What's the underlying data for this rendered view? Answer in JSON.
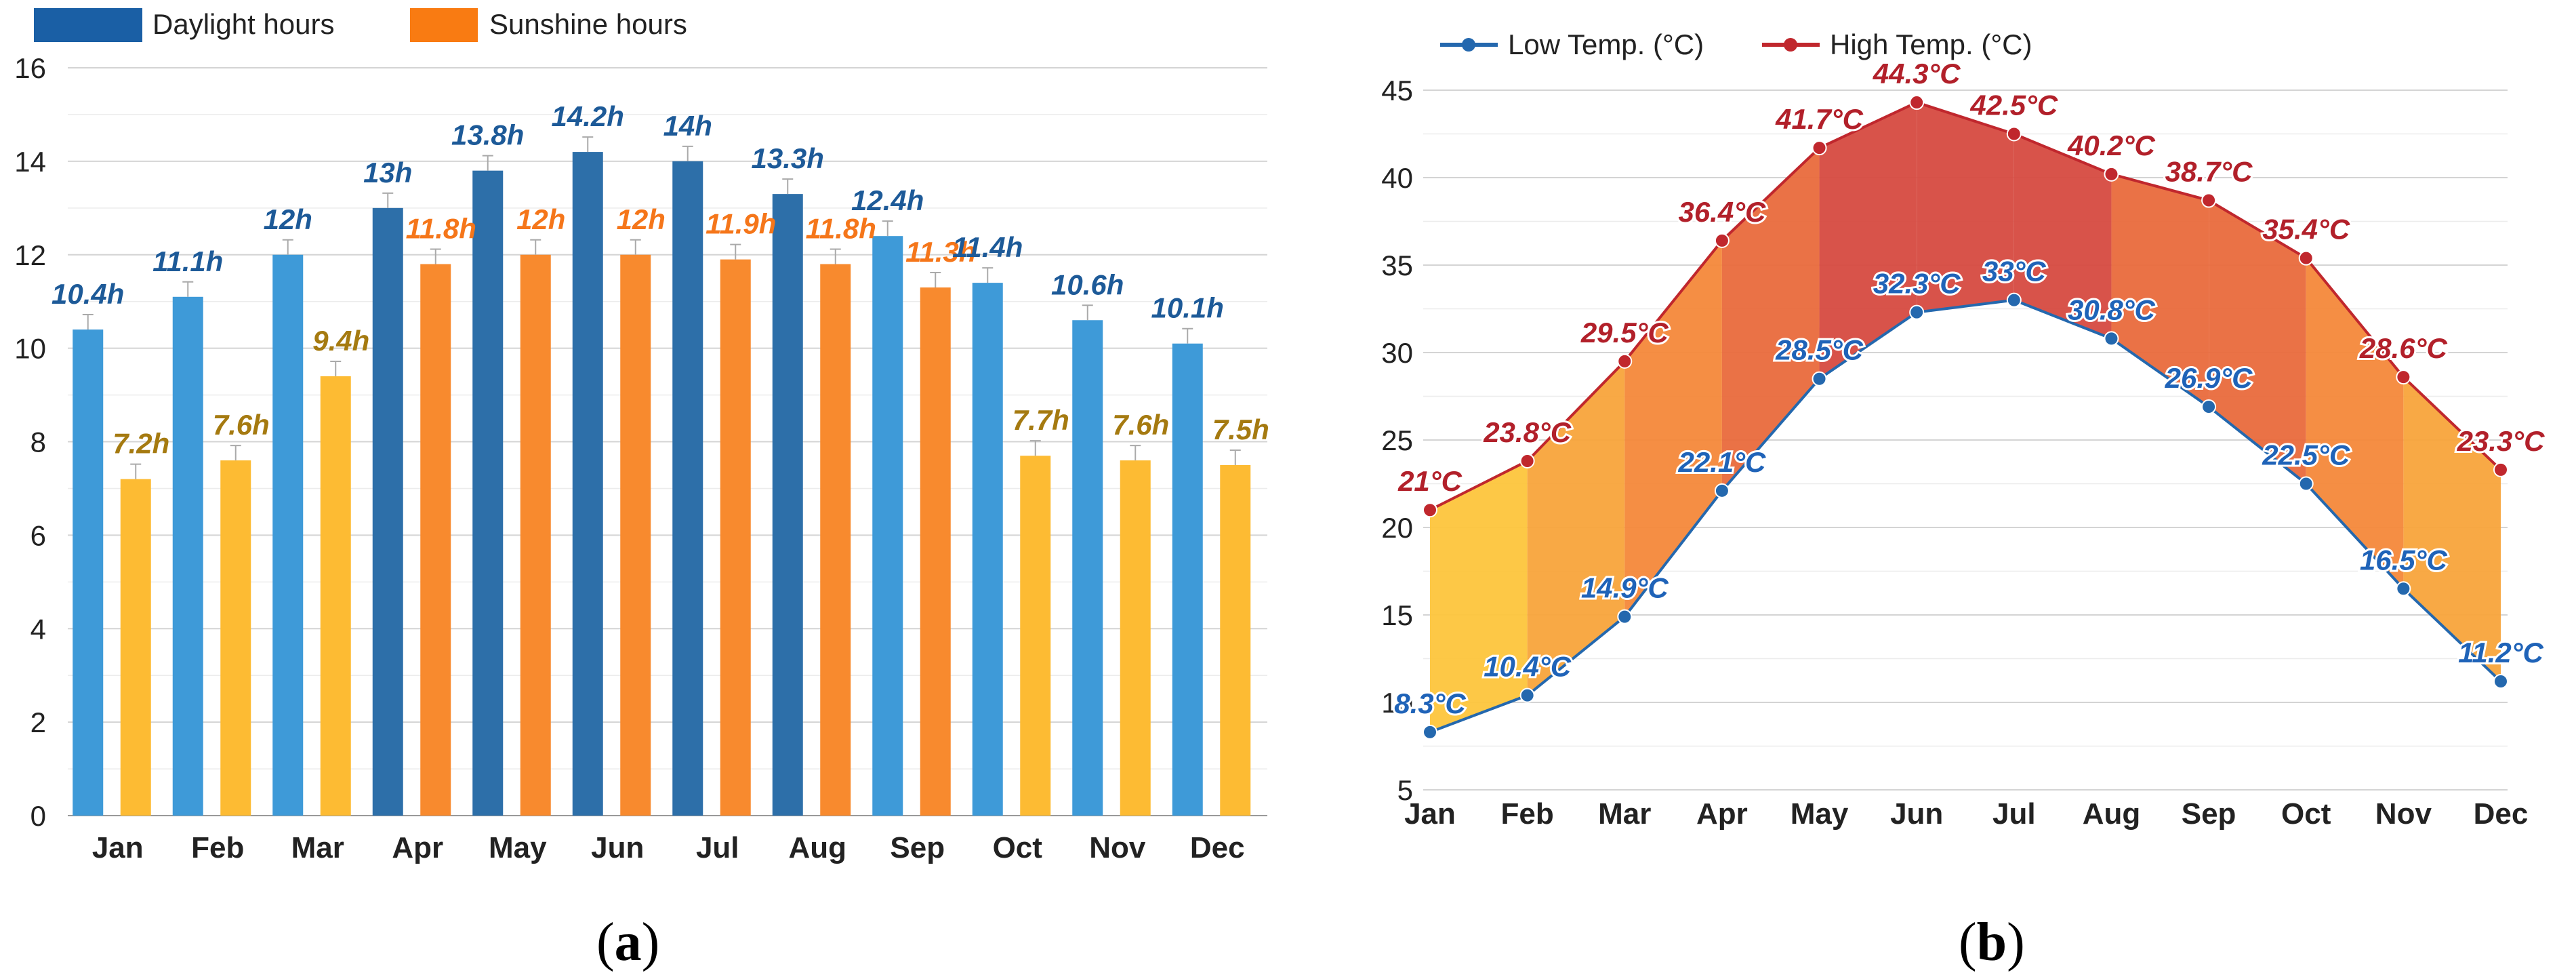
{
  "chart_data": [
    {
      "type": "bar",
      "panel_label": "a",
      "categories": [
        "Jan",
        "Feb",
        "Mar",
        "Apr",
        "May",
        "Jun",
        "Jul",
        "Aug",
        "Sep",
        "Oct",
        "Nov",
        "Dec"
      ],
      "series": [
        {
          "name": "Daylight hours",
          "values": [
            10.4,
            11.1,
            12,
            13,
            13.8,
            14.2,
            14,
            13.3,
            12.4,
            11.4,
            10.6,
            10.1
          ],
          "labels": [
            "10.4h",
            "11.1h",
            "12h",
            "13h",
            "13.8h",
            "14.2h",
            "14h",
            "13.3h",
            "12.4h",
            "11.4h",
            "10.6h",
            "10.1h"
          ]
        },
        {
          "name": "Sunshine hours",
          "values": [
            7.2,
            7.6,
            9.4,
            11.8,
            12,
            12,
            11.9,
            11.8,
            11.3,
            7.7,
            7.6,
            7.5
          ],
          "labels": [
            "7.2h",
            "7.6h",
            "9.4h",
            "11.8h",
            "12h",
            "12h",
            "11.9h",
            "11.8h",
            "11.3h",
            "7.7h",
            "7.6h",
            "7.5h"
          ]
        }
      ],
      "yticks": [
        "0",
        "2",
        "4",
        "6",
        "8",
        "10",
        "12",
        "14",
        "16"
      ],
      "ylim": [
        0,
        16
      ],
      "legend_position": "top-left",
      "grid": true,
      "colors": {
        "daylight_light": "#3e9ad8",
        "daylight_dark": "#2d6fa9",
        "sunshine_light": "#fdbb33",
        "sunshine_dark": "#f88a2e",
        "daylight_label": "#1d5a98",
        "sunshine_label_light": "#a57a10",
        "sunshine_label_dark": "#f5761a",
        "legend_daylight": "#1a5fa5",
        "legend_sunshine": "#f97b12"
      }
    },
    {
      "type": "area",
      "panel_label": "b",
      "categories": [
        "Jan",
        "Feb",
        "Mar",
        "Apr",
        "May",
        "Jun",
        "Jul",
        "Aug",
        "Sep",
        "Oct",
        "Nov",
        "Dec"
      ],
      "series": [
        {
          "name": "Low Temp. (°C)",
          "values": [
            8.3,
            10.4,
            14.9,
            22.1,
            28.5,
            32.3,
            33,
            30.8,
            26.9,
            22.5,
            16.5,
            11.2
          ],
          "labels": [
            "8.3°C",
            "10.4°C",
            "14.9°C",
            "22.1°C",
            "28.5°C",
            "32.3°C",
            "33°C",
            "30.8°C",
            "26.9°C",
            "22.5°C",
            "16.5°C",
            "11.2°C"
          ]
        },
        {
          "name": "High Temp. (°C)",
          "values": [
            21,
            23.8,
            29.5,
            36.4,
            41.7,
            44.3,
            42.5,
            40.2,
            38.7,
            35.4,
            28.6,
            23.3
          ],
          "labels": [
            "21°C",
            "23.8°C",
            "29.5°C",
            "36.4°C",
            "41.7°C",
            "44.3°C",
            "42.5°C",
            "40.2°C",
            "38.7°C",
            "35.4°C",
            "28.6°C",
            "23.3°C"
          ]
        }
      ],
      "yticks": [
        "5",
        "10",
        "15",
        "20",
        "25",
        "30",
        "35",
        "40",
        "45"
      ],
      "ylim": [
        5,
        45
      ],
      "legend_position": "top-left",
      "grid": true,
      "colors": {
        "low_line": "#2468ae",
        "high_line": "#c0272d",
        "low_label": "#1f63b8",
        "high_label": "#b2202a",
        "band_cool": "#fdc53c",
        "band_warm": "#f4883a",
        "band_hot": "#d64a40"
      }
    }
  ],
  "captions": {
    "a": "a",
    "b": "b"
  }
}
